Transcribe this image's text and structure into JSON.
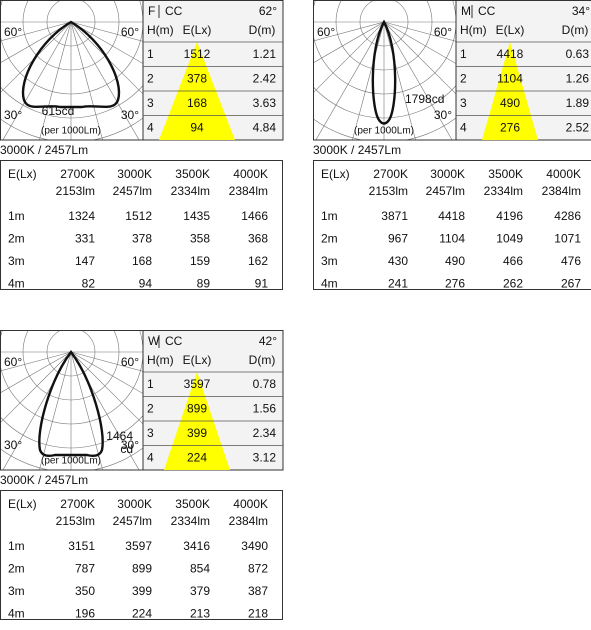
{
  "blocks": [
    {
      "beam": "F",
      "cc": "CC",
      "angle": "62°",
      "diagram": {
        "labels": [
          "60°",
          "60°",
          "30°",
          "30°"
        ],
        "intensity": [
          "615cd"
        ],
        "note": "(per 1000Lm)"
      },
      "headers": [
        "H(m)",
        "E(Lx)",
        "D(m)"
      ],
      "rows": [
        [
          "1",
          "1512",
          "1.21"
        ],
        [
          "2",
          "378",
          "2.42"
        ],
        [
          "3",
          "168",
          "3.63"
        ],
        [
          "4",
          "94",
          "4.84"
        ]
      ],
      "caption": "3000K / 2457Lm",
      "table": {
        "corner": "E(Lx)",
        "columns": [
          {
            "temp": "2700K",
            "flux": "2153lm"
          },
          {
            "temp": "3000K",
            "flux": "2457lm"
          },
          {
            "temp": "3500K",
            "flux": "2334lm"
          },
          {
            "temp": "4000K",
            "flux": "2384lm"
          }
        ],
        "rows": [
          [
            "1m",
            "1324",
            "1512",
            "1435",
            "1466"
          ],
          [
            "2m",
            "331",
            "378",
            "358",
            "368"
          ],
          [
            "3m",
            "147",
            "168",
            "159",
            "162"
          ],
          [
            "4m",
            "82",
            "94",
            "89",
            "91"
          ]
        ]
      }
    },
    {
      "beam": "M",
      "cc": "CC",
      "angle": "34°",
      "diagram": {
        "labels": [
          "60°",
          "60°",
          "30°"
        ],
        "intensity": [
          "1798cd"
        ],
        "note": "(per 1000Lm)"
      },
      "headers": [
        "H(m)",
        "E(Lx)",
        "D(m)"
      ],
      "rows": [
        [
          "1",
          "4418",
          "0.63"
        ],
        [
          "2",
          "1104",
          "1.26"
        ],
        [
          "3",
          "490",
          "1.89"
        ],
        [
          "4",
          "276",
          "2.52"
        ]
      ],
      "caption": "3000K / 2457Lm",
      "table": {
        "corner": "E(Lx)",
        "columns": [
          {
            "temp": "2700K",
            "flux": "2153lm"
          },
          {
            "temp": "3000K",
            "flux": "2457lm"
          },
          {
            "temp": "3500K",
            "flux": "2334lm"
          },
          {
            "temp": "4000K",
            "flux": "2384lm"
          }
        ],
        "rows": [
          [
            "1m",
            "3871",
            "4418",
            "4196",
            "4286"
          ],
          [
            "2m",
            "967",
            "1104",
            "1049",
            "1071"
          ],
          [
            "3m",
            "430",
            "490",
            "466",
            "476"
          ],
          [
            "4m",
            "241",
            "276",
            "262",
            "267"
          ]
        ]
      }
    },
    {
      "beam": "W",
      "cc": "CC",
      "angle": "42°",
      "diagram": {
        "labels": [
          "60°",
          "60°",
          "30°",
          "30°"
        ],
        "intensity": [
          "1464",
          "cd"
        ],
        "note": "(per 1000Lm)"
      },
      "headers": [
        "H(m)",
        "E(Lx)",
        "D(m)"
      ],
      "rows": [
        [
          "1",
          "3597",
          "0.78"
        ],
        [
          "2",
          "899",
          "1.56"
        ],
        [
          "3",
          "399",
          "2.34"
        ],
        [
          "4",
          "224",
          "3.12"
        ]
      ],
      "caption": "3000K / 2457Lm",
      "table": {
        "corner": "E(Lx)",
        "columns": [
          {
            "temp": "2700K",
            "flux": "2153lm"
          },
          {
            "temp": "3000K",
            "flux": "2457lm"
          },
          {
            "temp": "3500K",
            "flux": "2334lm"
          },
          {
            "temp": "4000K",
            "flux": "2384lm"
          }
        ],
        "rows": [
          [
            "1m",
            "3151",
            "3597",
            "3416",
            "3490"
          ],
          [
            "2m",
            "787",
            "899",
            "854",
            "872"
          ],
          [
            "3m",
            "350",
            "399",
            "379",
            "387"
          ],
          [
            "4m",
            "196",
            "224",
            "213",
            "218"
          ]
        ]
      }
    }
  ]
}
